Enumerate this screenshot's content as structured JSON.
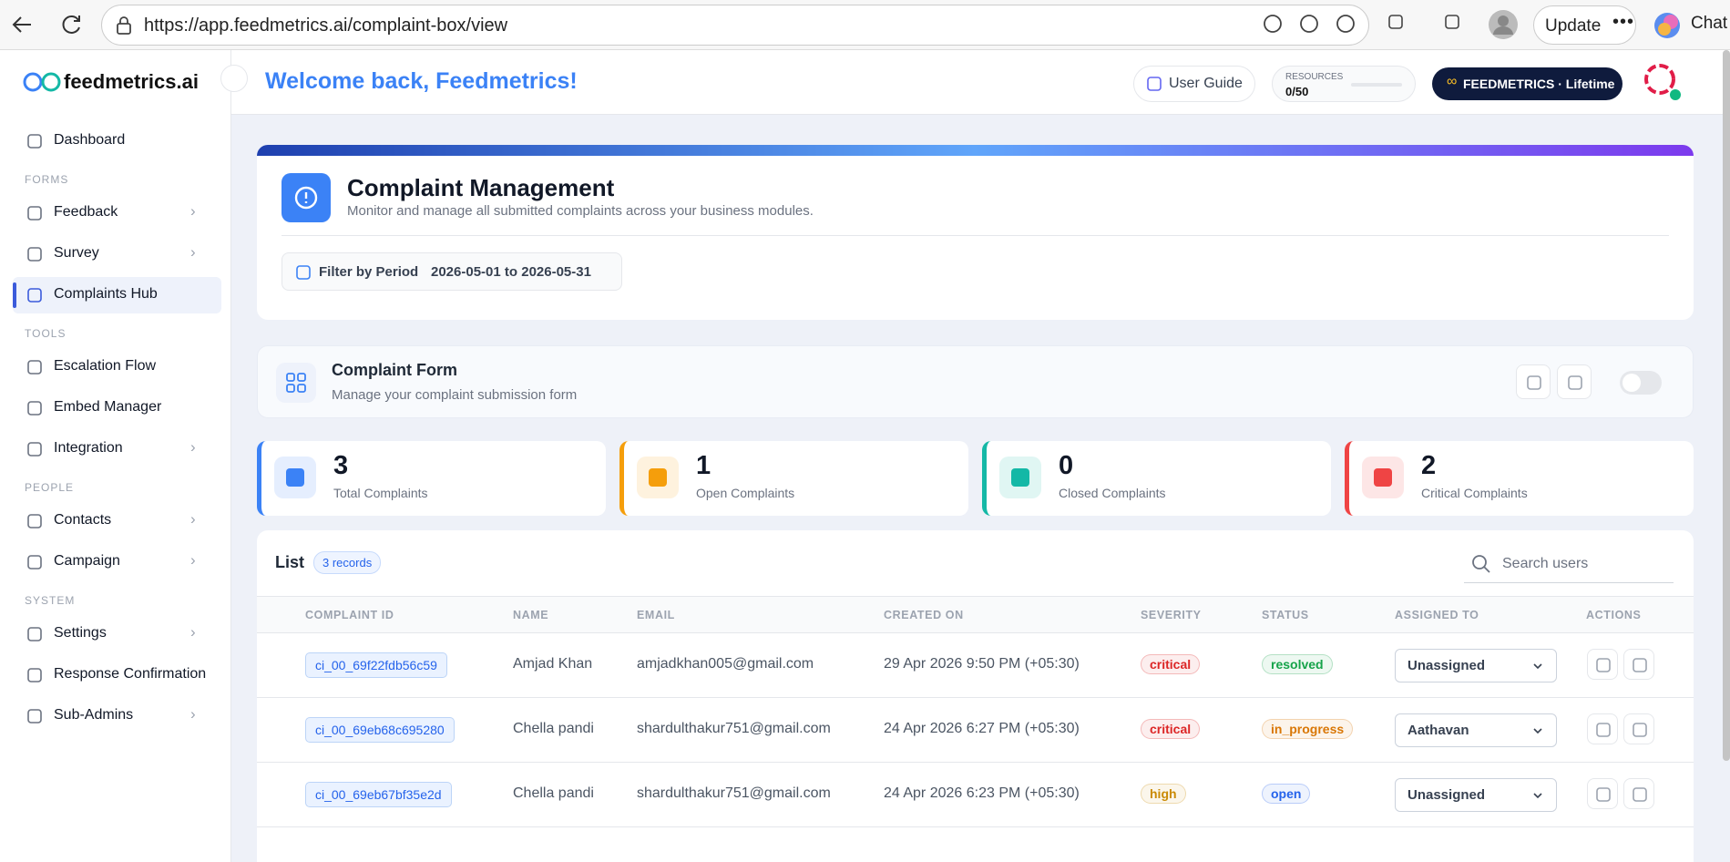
{
  "browser": {
    "url": "https://app.feedmetrics.ai/complaint-box/view",
    "update": "Update",
    "chat": "Chat"
  },
  "sidebar": {
    "brand": "feedmetrics.ai",
    "groups": [
      {
        "items": [
          {
            "label": "Dashboard"
          }
        ]
      },
      {
        "heading": "FORMS",
        "items": [
          {
            "label": "Feedback",
            "submenu": true
          },
          {
            "label": "Survey",
            "submenu": true
          },
          {
            "label": "Complaints Hub",
            "active": true
          }
        ]
      },
      {
        "heading": "TOOLS",
        "items": [
          {
            "label": "Escalation Flow"
          },
          {
            "label": "Embed Manager"
          },
          {
            "label": "Integration",
            "submenu": true
          }
        ]
      },
      {
        "heading": "PEOPLE",
        "items": [
          {
            "label": "Contacts",
            "submenu": true
          },
          {
            "label": "Campaign",
            "submenu": true
          }
        ]
      },
      {
        "heading": "SYSTEM",
        "items": [
          {
            "label": "Settings",
            "submenu": true
          },
          {
            "label": "Response Confirmation"
          },
          {
            "label": "Sub-Admins",
            "submenu": true
          }
        ]
      }
    ]
  },
  "header": {
    "welcome": "Welcome back, Feedmetrics!",
    "user_guide": "User Guide",
    "resources_label": "RESOURCES",
    "resources_value": "0/50",
    "plan": "FEEDMETRICS · Lifetime"
  },
  "management": {
    "title": "Complaint Management",
    "subtitle": "Monitor and manage all submitted complaints across your business modules.",
    "filter_label": "Filter by Period",
    "filter_value": "2026-05-01 to 2026-05-31"
  },
  "form": {
    "title": "Complaint Form",
    "subtitle": "Manage your complaint submission form"
  },
  "stats": [
    {
      "value": "3",
      "label": "Total Complaints",
      "color": "#3b82f6"
    },
    {
      "value": "1",
      "label": "Open Complaints",
      "color": "#f59e0b"
    },
    {
      "value": "0",
      "label": "Closed Complaints",
      "color": "#14b8a6"
    },
    {
      "value": "2",
      "label": "Critical Complaints",
      "color": "#ef4444"
    }
  ],
  "list": {
    "title": "List",
    "count": "3 records",
    "search_placeholder": "Search users",
    "columns": [
      "COMPLAINT ID",
      "NAME",
      "EMAIL",
      "CREATED ON",
      "SEVERITY",
      "STATUS",
      "ASSIGNED TO",
      "ACTIONS"
    ],
    "rows": [
      {
        "cells": [
          "ci_00_69f22fdb56c59",
          "Amjad Khan",
          "amjadkhan005@gmail.com",
          "29 Apr 2026 9:50 PM (+05:30)",
          "critical",
          "resolved",
          "Unassigned"
        ],
        "severity_color": "#dc2626",
        "status_color": "#16a34a"
      },
      {
        "cells": [
          "ci_00_69eb68c695280",
          "Chella pandi",
          "shardulthakur751@gmail.com",
          "24 Apr 2026 6:27 PM (+05:30)",
          "critical",
          "in_progress",
          "Aathavan"
        ],
        "severity_color": "#dc2626",
        "status_color": "#d97706"
      },
      {
        "cells": [
          "ci_00_69eb67bf35e2d",
          "Chella pandi",
          "shardulthakur751@gmail.com",
          "24 Apr 2026 6:23 PM (+05:30)",
          "high",
          "open",
          "Unassigned"
        ],
        "severity_color": "#ca8a04",
        "status_color": "#2563eb"
      }
    ]
  }
}
